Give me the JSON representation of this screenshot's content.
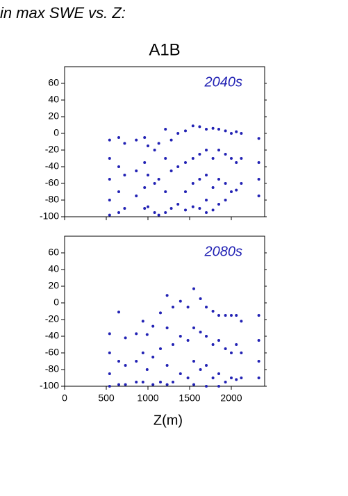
{
  "caption": "in max SWE vs. Z:",
  "chart_data": [
    {
      "type": "scatter",
      "title": "A1B",
      "annotation": "2040s",
      "color": "#2222b4",
      "xlim": [
        0,
        2400
      ],
      "xticks": [
        0,
        500,
        1000,
        1500,
        2000
      ],
      "xticklabels": false,
      "ylim": [
        -100,
        80
      ],
      "yticks": [
        -100,
        -80,
        -60,
        -40,
        -20,
        0,
        20,
        40,
        60
      ],
      "x": [
        540,
        540,
        540,
        540,
        540,
        650,
        650,
        650,
        650,
        720,
        720,
        720,
        860,
        860,
        860,
        960,
        960,
        960,
        960,
        1000,
        1000,
        1000,
        1080,
        1080,
        1080,
        1130,
        1130,
        1130,
        1210,
        1210,
        1210,
        1210,
        1280,
        1280,
        1280,
        1360,
        1360,
        1360,
        1450,
        1450,
        1450,
        1450,
        1540,
        1540,
        1540,
        1540,
        1620,
        1620,
        1620,
        1620,
        1700,
        1700,
        1700,
        1700,
        1700,
        1780,
        1780,
        1780,
        1780,
        1850,
        1850,
        1850,
        1850,
        1930,
        1930,
        1930,
        1930,
        2000,
        2000,
        2000,
        2060,
        2060,
        2060,
        2120,
        2120,
        2120,
        2330,
        2330,
        2330,
        2330
      ],
      "values": [
        -8,
        -30,
        -55,
        -80,
        -98,
        -5,
        -40,
        -70,
        -95,
        -12,
        -50,
        -90,
        -8,
        -45,
        -75,
        -5,
        -35,
        -65,
        -90,
        -15,
        -50,
        -88,
        -20,
        -60,
        -95,
        -12,
        -55,
        -98,
        5,
        -30,
        -70,
        -95,
        -8,
        -45,
        -90,
        0,
        -40,
        -85,
        3,
        -35,
        -70,
        -92,
        9,
        -30,
        -60,
        -88,
        8,
        -25,
        -55,
        -90,
        5,
        -20,
        -50,
        -80,
        -95,
        6,
        -30,
        -65,
        -92,
        5,
        -20,
        -55,
        -85,
        3,
        -25,
        -60,
        -80,
        0,
        -30,
        -70,
        2,
        -35,
        -68,
        0,
        -30,
        -60,
        -6,
        -35,
        -55,
        -75
      ]
    },
    {
      "type": "scatter",
      "annotation": "2080s",
      "xlabel": "Z(m)",
      "color": "#2222b4",
      "xlim": [
        0,
        2400
      ],
      "xticks": [
        0,
        500,
        1000,
        1500,
        2000
      ],
      "xticklabels": true,
      "ylim": [
        -100,
        80
      ],
      "yticks": [
        -100,
        -80,
        -60,
        -40,
        -20,
        0,
        20,
        40,
        60
      ],
      "x": [
        540,
        540,
        540,
        540,
        650,
        650,
        650,
        730,
        730,
        730,
        860,
        860,
        860,
        940,
        940,
        940,
        990,
        990,
        1060,
        1060,
        1060,
        1150,
        1150,
        1150,
        1230,
        1230,
        1230,
        1230,
        1300,
        1300,
        1300,
        1390,
        1390,
        1390,
        1480,
        1480,
        1480,
        1550,
        1550,
        1550,
        1550,
        1630,
        1630,
        1630,
        1700,
        1700,
        1700,
        1700,
        1780,
        1780,
        1780,
        1850,
        1850,
        1850,
        1850,
        1930,
        1930,
        1930,
        2000,
        2000,
        2000,
        2060,
        2060,
        2060,
        2120,
        2120,
        2120,
        2330,
        2330,
        2330,
        2330
      ],
      "values": [
        -37,
        -60,
        -85,
        -100,
        -11,
        -70,
        -98,
        -42,
        -75,
        -98,
        -37,
        -70,
        -95,
        -22,
        -60,
        -95,
        -38,
        -80,
        -28,
        -65,
        -98,
        -12,
        -55,
        -95,
        9,
        -30,
        -75,
        -98,
        -5,
        -50,
        -95,
        2,
        -40,
        -85,
        -5,
        -45,
        -90,
        17,
        -30,
        -70,
        -98,
        5,
        -35,
        -80,
        -5,
        -40,
        -75,
        -100,
        -10,
        -50,
        -90,
        -15,
        -45,
        -85,
        -100,
        -15,
        -55,
        -95,
        -15,
        -60,
        -90,
        -15,
        -50,
        -92,
        -22,
        -60,
        -90,
        -15,
        -45,
        -70,
        -90
      ]
    }
  ]
}
